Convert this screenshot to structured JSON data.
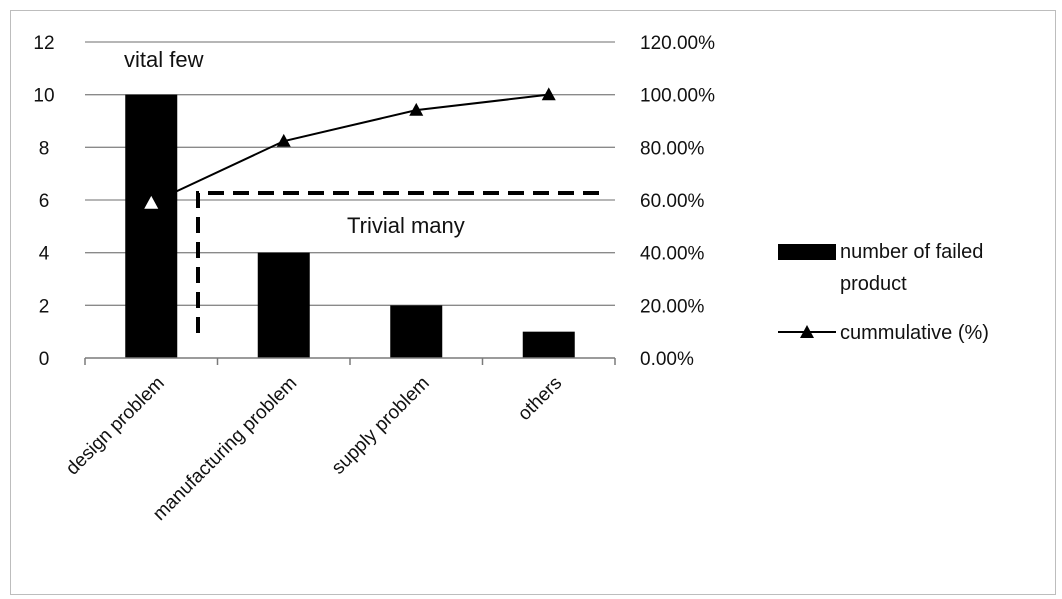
{
  "chart_data": {
    "type": "bar",
    "categories": [
      "design problem",
      "manufacturing problem",
      "supply problem",
      "others"
    ],
    "series": [
      {
        "name": "number of failed product",
        "kind": "bar",
        "axis": "left",
        "values": [
          10,
          4,
          2,
          1
        ]
      },
      {
        "name": "cummulative (%)",
        "kind": "line",
        "axis": "right",
        "marker": "triangle",
        "values": [
          58.82,
          82.35,
          94.12,
          100.0
        ]
      }
    ],
    "y_left": {
      "min": 0,
      "max": 12,
      "ticks": [
        "0",
        "2",
        "4",
        "6",
        "8",
        "10",
        "12"
      ]
    },
    "y_right": {
      "min": 0,
      "max": 120,
      "ticks": [
        "0.00%",
        "20.00%",
        "40.00%",
        "60.00%",
        "80.00%",
        "100.00%",
        "120.00%"
      ]
    },
    "grid": "horizontal",
    "legend": {
      "position": "right",
      "items": [
        {
          "label_line1": "number of failed",
          "label_line2": "product",
          "symbol": "bar"
        },
        {
          "label_line1": "cummulative (%)",
          "symbol": "line-triangle"
        }
      ]
    },
    "annotations": {
      "vital_few": "vital few",
      "trivial_many": "Trivial many"
    },
    "colors": {
      "bar": "#000000",
      "line": "#000000",
      "grid": "#8a8a8a"
    }
  }
}
